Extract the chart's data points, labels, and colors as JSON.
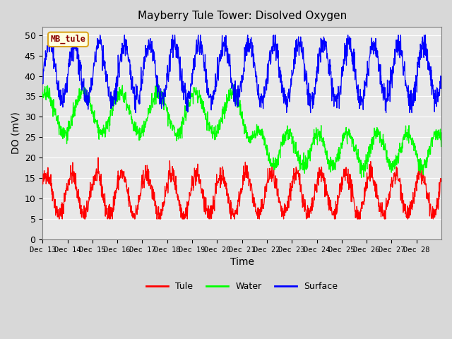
{
  "title": "Mayberry Tule Tower: Disolved Oxygen",
  "ylabel": "DO (mV)",
  "xlabel": "Time",
  "legend_label": "MB_tule",
  "series_labels": [
    "Tule",
    "Water",
    "Surface"
  ],
  "series_colors": [
    "red",
    "lime",
    "blue"
  ],
  "fig_bg_color": "#d8d8d8",
  "plot_bg_color": "#e8e8e8",
  "ylim": [
    0,
    52
  ],
  "yticks": [
    0,
    5,
    10,
    15,
    20,
    25,
    30,
    35,
    40,
    45,
    50
  ],
  "xtick_labels": [
    "Dec 13",
    "Dec 14",
    "Dec 15",
    "Dec 16",
    "Dec 17",
    "Dec 18",
    "Dec 19",
    "Dec 20",
    "Dec 21",
    "Dec 22",
    "Dec 23",
    "Dec 24",
    "Dec 25",
    "Dec 26",
    "Dec 27",
    "Dec 28"
  ],
  "n_points": 1500,
  "seed": 42
}
